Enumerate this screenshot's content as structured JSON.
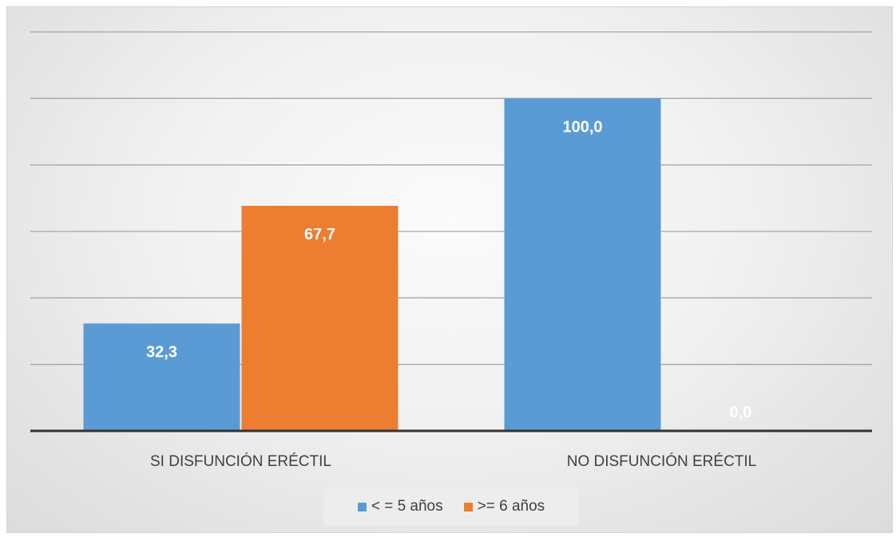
{
  "chart_data": {
    "type": "bar",
    "categories": [
      "SI DISFUNCIÓN ERÉCTIL",
      "NO DISFUNCIÓN ERÉCTIL"
    ],
    "series": [
      {
        "name": "< = 5 años",
        "values": [
          32.3,
          100.0
        ],
        "labels": [
          "32,3",
          "100,0"
        ],
        "color": "#5b9bd5"
      },
      {
        "name": ">= 6 años",
        "values": [
          67.7,
          0.0
        ],
        "labels": [
          "67,7",
          "0,0"
        ],
        "color": "#ed7d31"
      }
    ],
    "ylim": [
      0,
      120
    ],
    "grid": true,
    "legend_position": "bottom"
  }
}
